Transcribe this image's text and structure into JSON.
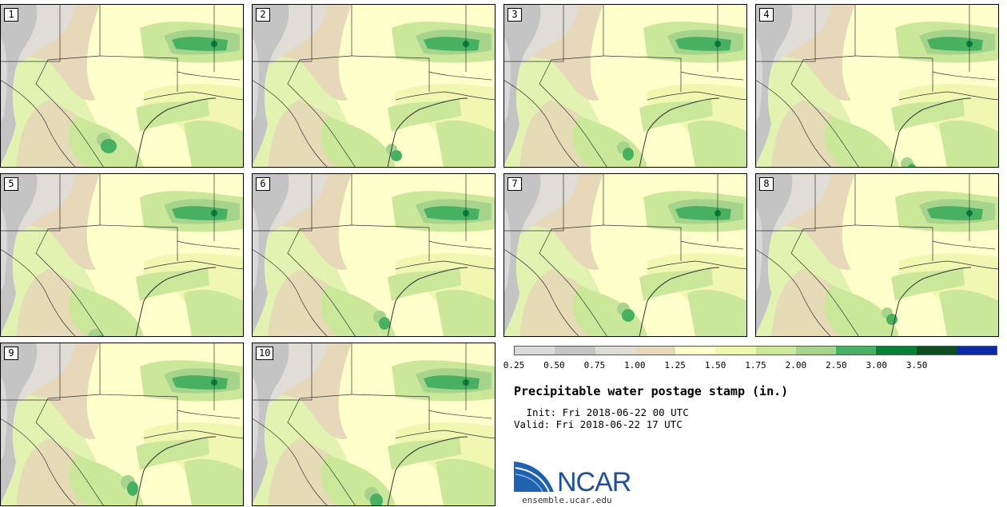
{
  "stamps": [
    {
      "label": "1"
    },
    {
      "label": "2"
    },
    {
      "label": "3"
    },
    {
      "label": "4"
    },
    {
      "label": "5"
    },
    {
      "label": "6"
    },
    {
      "label": "7"
    },
    {
      "label": "8"
    },
    {
      "label": "9"
    },
    {
      "label": "10"
    }
  ],
  "colorbar": {
    "ticks": [
      "0.25",
      "0.50",
      "0.75",
      "1.00",
      "1.25",
      "1.50",
      "1.75",
      "2.00",
      "2.50",
      "3.00",
      "3.50"
    ],
    "colors": [
      "#d9d9d9",
      "#c4c4c4",
      "#e0ddd6",
      "#e6d8b8",
      "#ffffcc",
      "#f0f7b0",
      "#cbe89a",
      "#a6d48c",
      "#48b061",
      "#068035",
      "#0d4d22",
      "#0b2aaa"
    ]
  },
  "title": "Precipitable water postage stamp (in.)",
  "init": " Init: Fri 2018-06-22 00 UTC",
  "valid": "Valid: Fri 2018-06-22 17 UTC",
  "logo": {
    "text": "NCAR",
    "url": "ensemble.ucar.edu"
  }
}
